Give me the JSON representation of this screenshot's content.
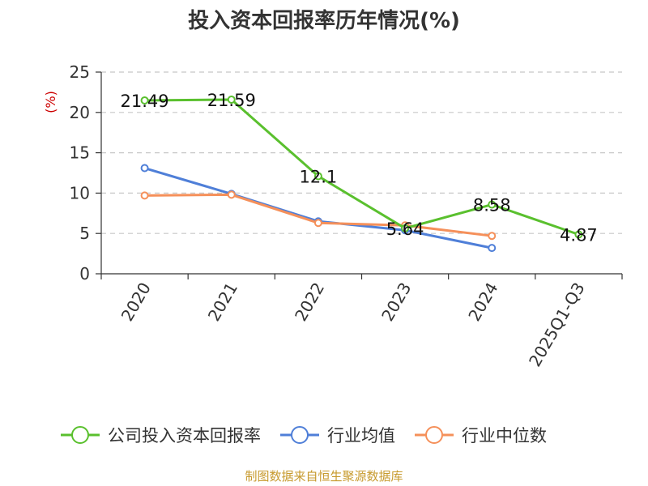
{
  "chart_data": {
    "type": "line",
    "title": "投入资本回报率历年情况(%)",
    "ylabel": "(%)",
    "xlabel": "",
    "categories": [
      "2020",
      "2021",
      "2022",
      "2023",
      "2024",
      "2025Q1-Q3"
    ],
    "ylim": [
      0,
      25
    ],
    "yticks": [
      0,
      5,
      10,
      15,
      20,
      25
    ],
    "grid": true,
    "legend_position": "bottom",
    "series": [
      {
        "name": "公司投入资本回报率",
        "color": "#5ac02e",
        "values": [
          21.49,
          21.59,
          12.1,
          5.64,
          8.58,
          4.87
        ],
        "labels": [
          "21.49",
          "21.59",
          "12.1",
          "5.64",
          "8.58",
          "4.87"
        ]
      },
      {
        "name": "行业均值",
        "color": "#4f7fd8",
        "values": [
          13.1,
          9.9,
          6.5,
          5.4,
          3.2,
          null
        ]
      },
      {
        "name": "行业中位数",
        "color": "#f5905a",
        "values": [
          9.7,
          9.8,
          6.3,
          6.0,
          4.7,
          null
        ]
      }
    ]
  },
  "source": {
    "text": "制图数据来自恒生聚源数据库",
    "color": "#c79a2e"
  },
  "unit_color": "#cc0000"
}
